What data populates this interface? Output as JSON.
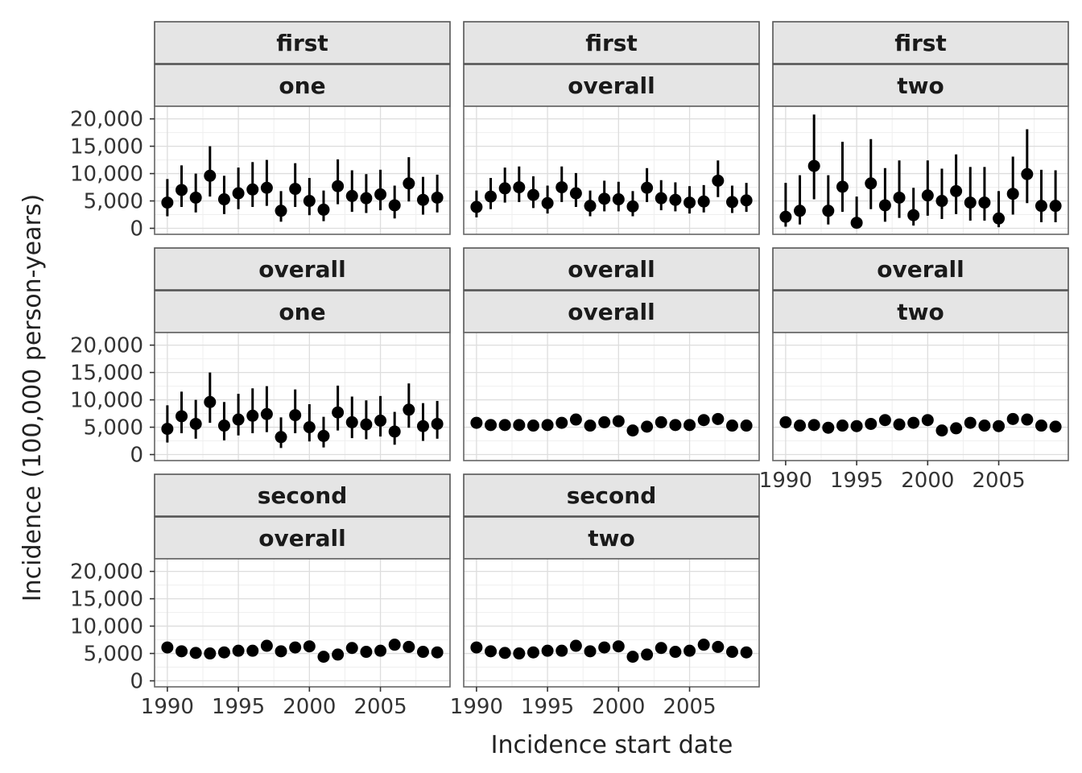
{
  "chart_data": {
    "type": "scatter",
    "subtype": "faceted point-range (facet_wrap, 3 columns)",
    "xlabel": "Incidence start date",
    "ylabel": "Incidence (100,000 person-years)",
    "x_ticks": [
      "1990",
      "1995",
      "2000",
      "2005"
    ],
    "x_tick_values": [
      1990,
      1995,
      2000,
      2005
    ],
    "xlim": [
      1989.1,
      2009.9
    ],
    "y_ticks": [
      "0",
      "5,000",
      "10,000",
      "15,000",
      "20,000"
    ],
    "y_tick_values": [
      0,
      5000,
      10000,
      15000,
      20000
    ],
    "ylim": [
      -1100,
      22300
    ],
    "grid": true,
    "x": [
      1990,
      1991,
      1992,
      1993,
      1994,
      1995,
      1996,
      1997,
      1998,
      1999,
      2000,
      2001,
      2002,
      2003,
      2004,
      2005,
      2006,
      2007,
      2008,
      2009
    ],
    "panels": [
      {
        "strip_top": "first",
        "strip_bottom": "one",
        "y": [
          4700,
          7000,
          5600,
          9600,
          5300,
          6400,
          7100,
          7400,
          3200,
          7200,
          5000,
          3400,
          7700,
          5900,
          5500,
          6200,
          4200,
          8200,
          5200,
          5600
        ],
        "lower": [
          2200,
          3900,
          2900,
          5800,
          2600,
          3500,
          3900,
          4100,
          1200,
          3900,
          2400,
          1300,
          4400,
          3000,
          2800,
          3300,
          1800,
          4900,
          2500,
          2900
        ],
        "upper": [
          9000,
          11500,
          10000,
          15000,
          9600,
          11100,
          12100,
          12500,
          6800,
          11900,
          9200,
          6900,
          12600,
          10600,
          9900,
          10700,
          7800,
          13000,
          9400,
          9800
        ]
      },
      {
        "strip_top": "first",
        "strip_bottom": "overall",
        "y": [
          3900,
          5800,
          7300,
          7500,
          6100,
          4600,
          7500,
          6400,
          4100,
          5400,
          5300,
          4000,
          7400,
          5500,
          5200,
          4700,
          4900,
          8700,
          4800,
          5100
        ],
        "lower": [
          2000,
          3500,
          4700,
          4800,
          3700,
          2700,
          4800,
          3900,
          2200,
          3100,
          3100,
          2200,
          4800,
          3300,
          3100,
          2700,
          2900,
          5700,
          2800,
          3000
        ],
        "upper": [
          6900,
          9200,
          11100,
          11300,
          9500,
          7800,
          11300,
          10100,
          6900,
          8700,
          8500,
          6800,
          11000,
          8800,
          8400,
          7700,
          7900,
          12400,
          7800,
          8300
        ]
      },
      {
        "strip_top": "first",
        "strip_bottom": "two",
        "y": [
          2100,
          3200,
          11400,
          3200,
          7600,
          1000,
          8200,
          4200,
          5600,
          2400,
          6000,
          5000,
          6800,
          4700,
          4700,
          1800,
          6300,
          9900,
          4100,
          4100
        ],
        "lower": [
          300,
          700,
          5300,
          700,
          3000,
          0,
          3500,
          1200,
          1900,
          500,
          2300,
          1700,
          2600,
          1400,
          1400,
          200,
          2500,
          4600,
          1100,
          1100
        ],
        "upper": [
          8300,
          9700,
          20800,
          9700,
          15800,
          5800,
          16300,
          11000,
          12400,
          7400,
          12400,
          10900,
          13500,
          11200,
          11200,
          6800,
          13100,
          18100,
          10700,
          10600
        ]
      },
      {
        "strip_top": "overall",
        "strip_bottom": "one",
        "y": [
          4700,
          7000,
          5600,
          9600,
          5300,
          6400,
          7100,
          7400,
          3200,
          7200,
          5000,
          3400,
          7700,
          5900,
          5500,
          6200,
          4200,
          8200,
          5200,
          5600
        ],
        "lower": [
          2200,
          3900,
          2900,
          5800,
          2600,
          3500,
          3900,
          4100,
          1200,
          3900,
          2400,
          1300,
          4400,
          3000,
          2800,
          3300,
          1800,
          4900,
          2500,
          2900
        ],
        "upper": [
          9000,
          11500,
          10000,
          15000,
          9600,
          11100,
          12100,
          12500,
          6800,
          11900,
          9200,
          6900,
          12600,
          10600,
          9900,
          10700,
          7800,
          13000,
          9400,
          9800
        ]
      },
      {
        "strip_top": "overall",
        "strip_bottom": "overall",
        "y": [
          5800,
          5400,
          5400,
          5400,
          5300,
          5400,
          5800,
          6400,
          5300,
          5900,
          6100,
          4400,
          5100,
          5900,
          5400,
          5400,
          6300,
          6500,
          5300,
          5300
        ],
        "lower": [
          5000,
          4700,
          4700,
          4700,
          4600,
          4700,
          5000,
          5500,
          4600,
          5100,
          5300,
          3800,
          4400,
          5100,
          4700,
          4700,
          5500,
          5600,
          4600,
          4600
        ],
        "upper": [
          6700,
          6200,
          6200,
          6200,
          6100,
          6200,
          6700,
          7300,
          6100,
          6800,
          7000,
          5100,
          5900,
          6800,
          6200,
          6200,
          7200,
          7400,
          6100,
          6100
        ]
      },
      {
        "strip_top": "overall",
        "strip_bottom": "two",
        "y": [
          5900,
          5300,
          5400,
          4900,
          5300,
          5200,
          5600,
          6300,
          5500,
          5800,
          6300,
          4400,
          4800,
          5800,
          5300,
          5200,
          6500,
          6400,
          5300,
          5100
        ],
        "lower": [
          5000,
          4500,
          4600,
          4100,
          4500,
          4400,
          4800,
          5400,
          4700,
          5000,
          5400,
          3700,
          4100,
          5000,
          4500,
          4400,
          5600,
          5500,
          4500,
          4300
        ],
        "upper": [
          6900,
          6200,
          6300,
          5800,
          6200,
          6100,
          6500,
          7300,
          6400,
          6700,
          7300,
          5200,
          5600,
          6700,
          6200,
          6100,
          7500,
          7400,
          6200,
          6000
        ]
      },
      {
        "strip_top": "second",
        "strip_bottom": "overall",
        "y": [
          6100,
          5400,
          5100,
          5000,
          5200,
          5500,
          5500,
          6400,
          5400,
          6100,
          6300,
          4400,
          4800,
          6000,
          5300,
          5500,
          6600,
          6200,
          5300,
          5200
        ],
        "lower": [
          5200,
          4600,
          4400,
          4300,
          4500,
          4700,
          4700,
          5500,
          4600,
          5200,
          5400,
          3800,
          4100,
          5100,
          4500,
          4700,
          5700,
          5300,
          4500,
          4400
        ],
        "upper": [
          7100,
          6300,
          5900,
          5800,
          6000,
          6400,
          6400,
          7400,
          6300,
          7100,
          7300,
          5100,
          5600,
          7000,
          6200,
          6400,
          7600,
          7200,
          6200,
          6100
        ]
      },
      {
        "strip_top": "second",
        "strip_bottom": "two",
        "y": [
          6100,
          5400,
          5100,
          5000,
          5200,
          5500,
          5500,
          6400,
          5400,
          6100,
          6300,
          4400,
          4800,
          6000,
          5300,
          5500,
          6600,
          6200,
          5300,
          5200
        ],
        "lower": [
          5200,
          4600,
          4400,
          4300,
          4500,
          4700,
          4700,
          5500,
          4600,
          5200,
          5400,
          3800,
          4100,
          5100,
          4500,
          4700,
          5700,
          5300,
          4500,
          4400
        ],
        "upper": [
          7100,
          6300,
          5900,
          5800,
          6000,
          6400,
          6400,
          7400,
          6300,
          7100,
          7300,
          5100,
          5600,
          7000,
          6200,
          6400,
          7600,
          7200,
          6200,
          6100
        ]
      }
    ],
    "colors": {
      "point": "#000000",
      "strip_fill": "#e5e5e5",
      "strip_border": "#555555",
      "panel_border": "#666666",
      "grid_major": "#dddddd",
      "grid_minor": "#efefef"
    }
  }
}
